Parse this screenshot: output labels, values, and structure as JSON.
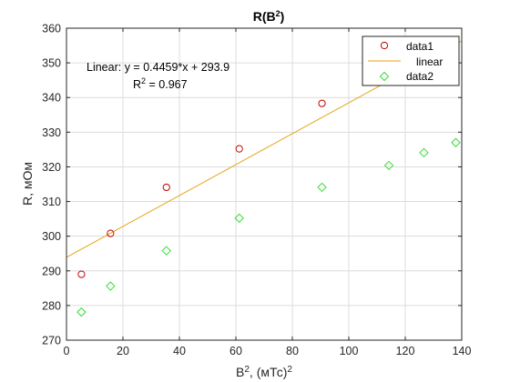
{
  "chart_data": {
    "type": "scatter",
    "title": "R(B",
    "title_sup": "2",
    "title_tail": ")",
    "xlabel": "B",
    "xlabel_sup": "2",
    "xlabel_mid": ", (мТс)",
    "xlabel_sup2": "2",
    "ylabel": "R, мОм",
    "xlim": [
      0,
      140
    ],
    "ylim": [
      270,
      360
    ],
    "xticks": [
      0,
      20,
      40,
      60,
      80,
      100,
      120,
      140
    ],
    "yticks": [
      270,
      280,
      290,
      300,
      310,
      320,
      330,
      340,
      350,
      360
    ],
    "grid": true,
    "legend_position": "top-right",
    "series": [
      {
        "name": "data1",
        "kind": "markers",
        "marker": "circle",
        "color": "#c00000",
        "x": [
          5.3,
          15.6,
          35.4,
          61.2,
          90.5,
          114.2,
          137.9
        ],
        "y": [
          289.0,
          300.8,
          314.1,
          325.2,
          338.3,
          345.2,
          351.2
        ]
      },
      {
        "name": "linear",
        "kind": "line",
        "color": "#e8a317",
        "slope": 0.4459,
        "intercept": 293.9
      },
      {
        "name": "data2",
        "kind": "markers",
        "marker": "diamond",
        "color": "#33dd33",
        "x": [
          5.3,
          15.6,
          35.4,
          61.2,
          90.5,
          114.2,
          126.6,
          137.9
        ],
        "y": [
          278.1,
          285.6,
          295.8,
          305.2,
          314.1,
          320.4,
          324.1,
          327.0
        ]
      }
    ],
    "annotation": {
      "equation": "Linear:  y = 0.4459*x + 293.9",
      "r2_label": "R",
      "r2_sup": "2",
      "r2_value": " = 0.967"
    }
  }
}
